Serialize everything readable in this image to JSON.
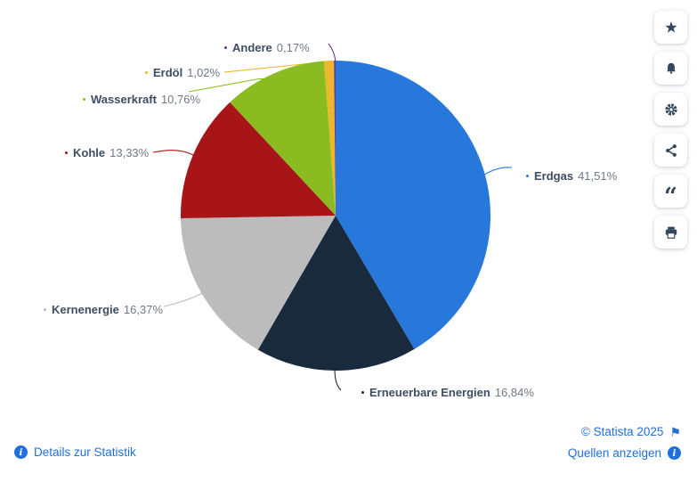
{
  "chart_data": {
    "type": "pie",
    "title": "",
    "unit": "%",
    "direction": "clockwise",
    "start_angle_deg": 0,
    "legend_position": "callout-labels",
    "total": 100,
    "segments": [
      {
        "label": "Erdgas",
        "value": 41.51,
        "display": "41,51%",
        "color": "#2878dc"
      },
      {
        "label": "Erneuerbare Energien",
        "value": 16.84,
        "display": "16,84%",
        "color": "#182a3c"
      },
      {
        "label": "Kernenergie",
        "value": 16.37,
        "display": "16,37%",
        "color": "#bcbcbd"
      },
      {
        "label": "Kohle",
        "value": 13.33,
        "display": "13,33%",
        "color": "#a81518"
      },
      {
        "label": "Wasserkraft",
        "value": 10.76,
        "display": "10,76%",
        "color": "#8abc22"
      },
      {
        "label": "Erdöl",
        "value": 1.02,
        "display": "1,02%",
        "color": "#edb72d"
      },
      {
        "label": "Andere",
        "value": 0.17,
        "display": "0,17%",
        "color": "#6a35a0"
      }
    ]
  },
  "toolbar": {
    "buttons": [
      {
        "name": "favorite",
        "icon": "star-icon"
      },
      {
        "name": "notifications",
        "icon": "bell-icon"
      },
      {
        "name": "settings",
        "icon": "gear-icon"
      },
      {
        "name": "share",
        "icon": "share-icon"
      },
      {
        "name": "cite",
        "icon": "quote-icon"
      },
      {
        "name": "print",
        "icon": "print-icon"
      }
    ]
  },
  "footer": {
    "details_label": "Details zur Statistik",
    "copyright": "© Statista 2025",
    "sources_label": "Quellen anzeigen",
    "details_icon": "info-icon",
    "sources_icon": "info-icon",
    "copyright_icon": "flag-icon"
  },
  "colors": {
    "link_blue": "#1f6fde",
    "icon_navy": "#33475f",
    "label_text": "#3d4d63",
    "value_text": "#6f7a86",
    "background": "#ffffff"
  }
}
